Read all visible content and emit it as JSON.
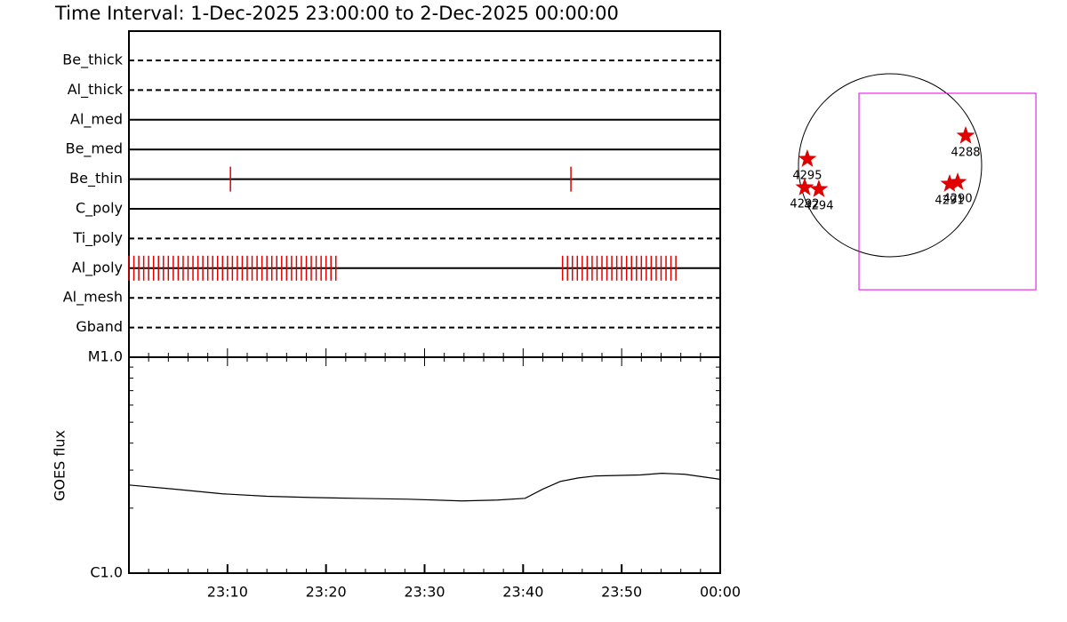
{
  "chart_data": [
    {
      "type": "event",
      "title": "Time Interval:  1-Dec-2025 23:00:00 to  2-Dec-2025 00:00:00",
      "xlim": [
        0,
        60
      ],
      "filters": [
        {
          "name": "Be_thick",
          "style": "dashed",
          "times": []
        },
        {
          "name": "Al_thick",
          "style": "dashed",
          "times": []
        },
        {
          "name": "Al_med",
          "style": "solid",
          "times": []
        },
        {
          "name": "Be_med",
          "style": "solid",
          "times": []
        },
        {
          "name": "Be_thin",
          "style": "solid",
          "times": [
            10.3,
            44.85
          ]
        },
        {
          "name": "C_poly",
          "style": "solid",
          "times": []
        },
        {
          "name": "Ti_poly",
          "style": "dashed",
          "times": []
        },
        {
          "name": "Al_poly",
          "style": "solid",
          "times": [
            0,
            0.5,
            1,
            1.5,
            2,
            2.5,
            3,
            3.5,
            4,
            4.5,
            5,
            5.5,
            6,
            6.5,
            7,
            7.5,
            8,
            8.5,
            9,
            9.5,
            10,
            10.5,
            11,
            11.5,
            12,
            12.5,
            13,
            13.5,
            14,
            14.5,
            15,
            15.5,
            16,
            16.5,
            17,
            17.5,
            18,
            18.5,
            19,
            19.5,
            20,
            20.5,
            21,
            44,
            44.5,
            45,
            45.5,
            46,
            46.5,
            47,
            47.5,
            48,
            48.5,
            49,
            49.5,
            50,
            50.5,
            51,
            51.5,
            52,
            52.5,
            53,
            53.5,
            54,
            54.5,
            55,
            55.5
          ]
        },
        {
          "name": "Al_mesh",
          "style": "dashed",
          "times": []
        },
        {
          "name": "Gband",
          "style": "dashed",
          "times": []
        }
      ],
      "color": "#e00000"
    },
    {
      "type": "line",
      "y_label": "GOES flux",
      "log_scale": true,
      "x": [
        0,
        5,
        9.5,
        14,
        18.5,
        23,
        28.4,
        33.8,
        37.4,
        40.2,
        42,
        43.8,
        45.6,
        47.4,
        51.9,
        54.1,
        56.4,
        60
      ],
      "values": [
        2.56e-06,
        2.44e-06,
        2.33e-06,
        2.27e-06,
        2.24e-06,
        2.22e-06,
        2.2e-06,
        2.16e-06,
        2.18e-06,
        2.22e-06,
        2.45e-06,
        2.66e-06,
        2.76e-06,
        2.82e-06,
        2.85e-06,
        2.9e-06,
        2.87e-06,
        2.72e-06
      ],
      "color": "#000000",
      "xlim": [
        0,
        60
      ],
      "xticks": [
        {
          "value": 10,
          "label": "23:10"
        },
        {
          "value": 20,
          "label": "23:20"
        },
        {
          "value": 30,
          "label": "23:30"
        },
        {
          "value": 40,
          "label": "23:40"
        },
        {
          "value": 50,
          "label": "23:50"
        },
        {
          "value": 60,
          "label": "00:00"
        }
      ],
      "ylim": [
        1e-06,
        1e-05
      ],
      "yticks": [
        {
          "value": 1e-06,
          "label": "C1.0"
        },
        {
          "value": 1e-05,
          "label": "M1.0"
        }
      ]
    },
    {
      "type": "sunmap",
      "solar_radius": 975,
      "regions": [
        {
          "label": "4295",
          "x": -881,
          "y": 66
        },
        {
          "label": "4292",
          "x": -909,
          "y": -237
        },
        {
          "label": "4294",
          "x": -758,
          "y": -256
        },
        {
          "label": "4291",
          "x": 634,
          "y": -199
        },
        {
          "label": "4290",
          "x": 720,
          "y": -180
        },
        {
          "label": "4288",
          "x": 805,
          "y": 313
        }
      ],
      "fov": {
        "x": [
          -331,
          1553
        ],
        "y": [
          -1326,
          767
        ],
        "color": "#e000e0"
      },
      "color": "#e00000"
    }
  ]
}
